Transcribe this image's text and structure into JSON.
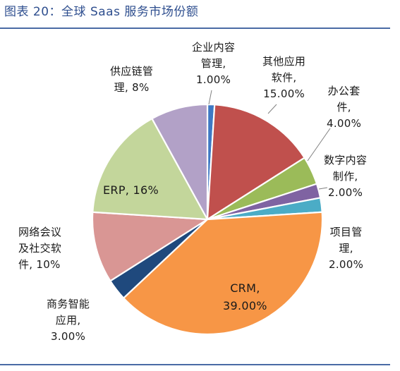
{
  "header": {
    "title": "图表 20：全球 Saas 服务市场份额"
  },
  "chart_data": {
    "type": "pie",
    "title": "图表 20：全球 Saas 服务市场份额",
    "slices": [
      {
        "id": "enterprise",
        "name": "企业内容管理",
        "value": 1.0,
        "color": "#3e79c4",
        "label_lines": [
          "企业内容",
          "管理,",
          "1.00%"
        ]
      },
      {
        "id": "other",
        "name": "其他应用软件",
        "value": 15.0,
        "color": "#c0504d",
        "label_lines": [
          "其他应用",
          "软件,",
          "15.00%"
        ]
      },
      {
        "id": "office",
        "name": "办公套件",
        "value": 4.0,
        "color": "#9bbb59",
        "label_lines": [
          "办公套",
          "件,",
          "4.00%"
        ]
      },
      {
        "id": "digital",
        "name": "数字内容制作",
        "value": 2.0,
        "color": "#7f63a2",
        "label_lines": [
          "数字内容",
          "制作,",
          "2.00%"
        ]
      },
      {
        "id": "project",
        "name": "项目管理",
        "value": 2.0,
        "color": "#4bacc6",
        "label_lines": [
          "项目管",
          "理,",
          "2.00%"
        ]
      },
      {
        "id": "crm",
        "name": "CRM",
        "value": 39.0,
        "color": "#f79646",
        "label_lines": [
          "CRM,",
          "39.00%"
        ]
      },
      {
        "id": "bi",
        "name": "商务智能应用",
        "value": 3.0,
        "color": "#1f497d",
        "label_lines": [
          "商务智能",
          "应用,",
          "3.00%"
        ]
      },
      {
        "id": "webconf",
        "name": "网络会议及社交软件",
        "value": 10.0,
        "color": "#d99694",
        "label_lines": [
          "网络会议",
          "及社交软",
          "件, 10%"
        ]
      },
      {
        "id": "erp",
        "name": "ERP",
        "value": 16.0,
        "color": "#c3d69b",
        "label_lines": [
          "ERP, 16%"
        ]
      },
      {
        "id": "supply",
        "name": "供应链管理",
        "value": 8.0,
        "color": "#b2a1c7",
        "label_lines": [
          "供应链管",
          "理, 8%"
        ]
      }
    ]
  }
}
